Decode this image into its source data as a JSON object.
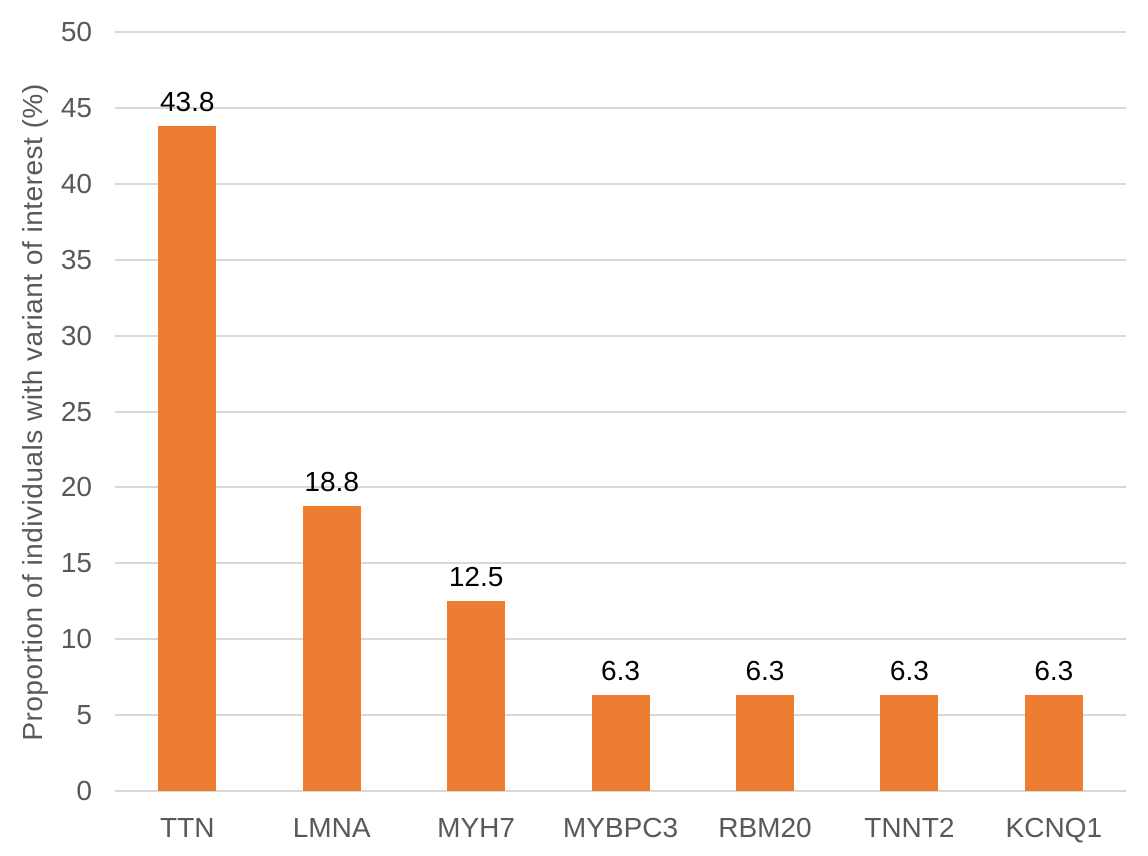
{
  "chart_data": {
    "type": "bar",
    "title": "",
    "xlabel": "",
    "ylabel": "Proportion of individuals with variant of interest (%)",
    "categories": [
      "TTN",
      "LMNA",
      "MYH7",
      "MYBPC3",
      "RBM20",
      "TNNT2",
      "KCNQ1"
    ],
    "values": [
      43.8,
      18.8,
      12.5,
      6.3,
      6.3,
      6.3,
      6.3
    ],
    "data_labels": [
      "43.8",
      "18.8",
      "12.5",
      "6.3",
      "6.3",
      "6.3",
      "6.3"
    ],
    "ytick_labels": [
      "0",
      "5",
      "10",
      "15",
      "20",
      "25",
      "30",
      "35",
      "40",
      "45",
      "50"
    ],
    "yticks": [
      0,
      5,
      10,
      15,
      20,
      25,
      30,
      35,
      40,
      45,
      50
    ],
    "ylim": [
      0,
      50
    ],
    "grid": true,
    "legend": false,
    "bar_color": "#ED7D31",
    "gridline_color": "#D9D9D9",
    "axis_line_color": "#D9D9D9",
    "axis_text_color": "#595959",
    "data_label_color": "#000000"
  }
}
